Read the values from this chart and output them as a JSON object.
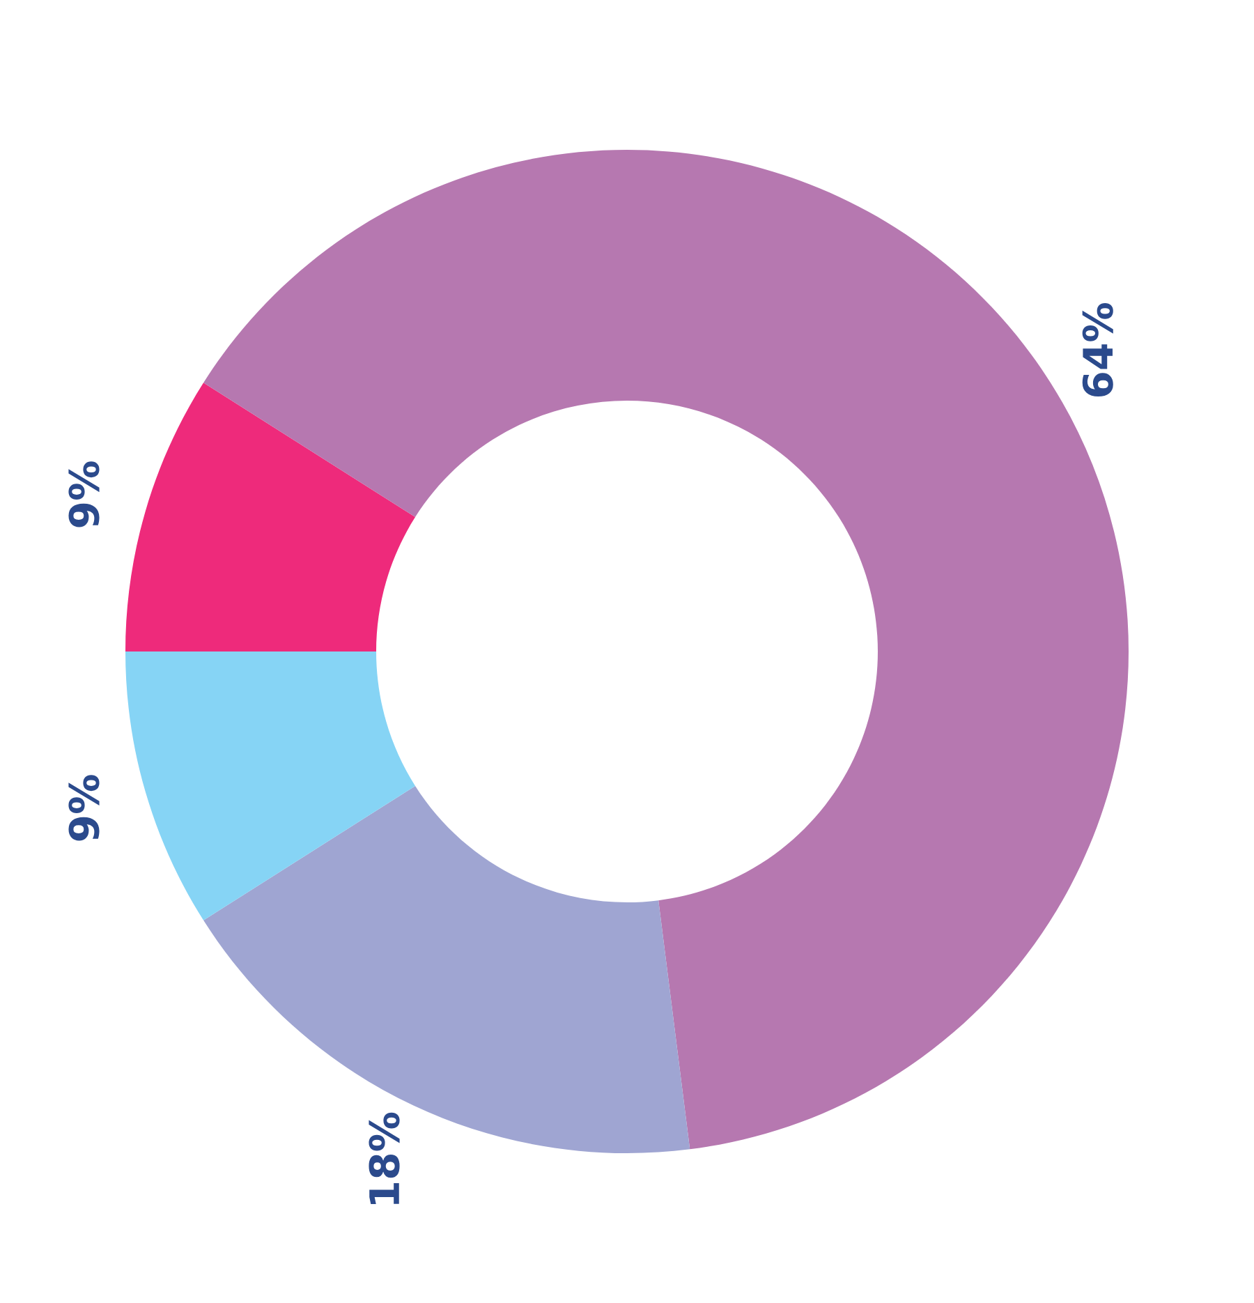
{
  "chart_data": {
    "type": "donut",
    "categories": [
      null,
      null,
      null,
      null
    ],
    "values": [
      9,
      64,
      18,
      9
    ],
    "colors": [
      "#ee2a7b",
      "#b678b0",
      "#9fa5d2",
      "#86d4f5"
    ],
    "value_labels": [
      "9%",
      "64%",
      "18%",
      "9%"
    ],
    "legend": false
  }
}
